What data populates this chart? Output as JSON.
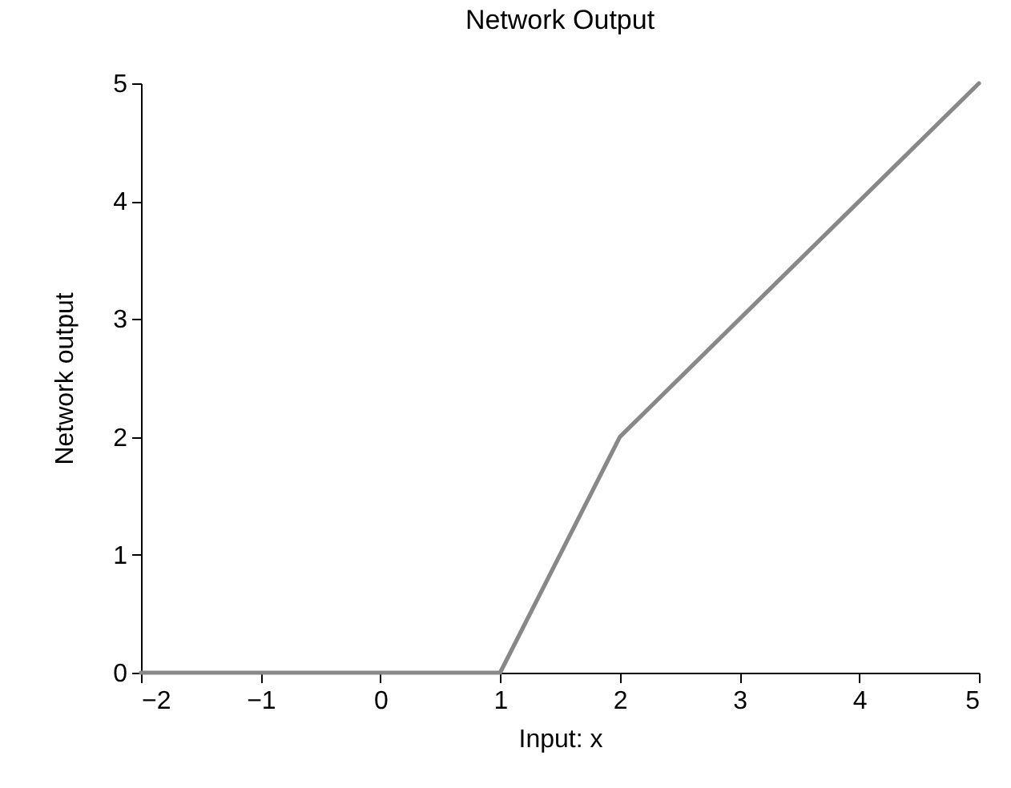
{
  "chart_data": {
    "type": "line",
    "title": "Network Output",
    "xlabel": "Input: x",
    "ylabel": "Network output",
    "x": [
      -2,
      1,
      2,
      5
    ],
    "series": [
      {
        "color": "#888888",
        "values": [
          0,
          0,
          2,
          5
        ]
      }
    ],
    "xlim": [
      -2,
      5
    ],
    "ylim": [
      0,
      5
    ],
    "xticks": [
      {
        "value": -2,
        "label": "−2"
      },
      {
        "value": -1,
        "label": "−1"
      },
      0,
      1,
      2,
      3,
      4,
      5
    ],
    "yticks": [
      0,
      1,
      2,
      3,
      4,
      5
    ],
    "grid": false,
    "marker": "none",
    "line_style": "solid"
  }
}
